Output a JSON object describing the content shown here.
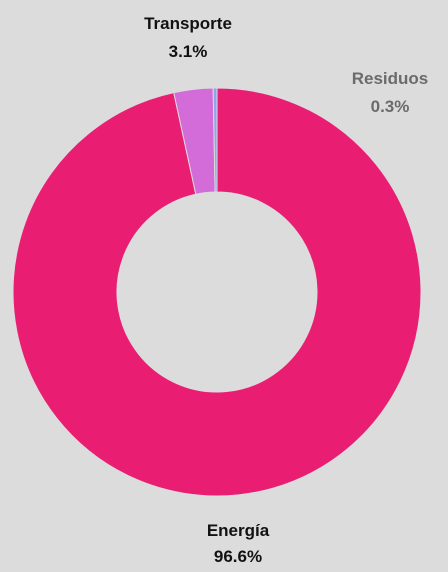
{
  "chart_data": {
    "type": "pie",
    "donut": true,
    "categories": [
      "Energía",
      "Transporte",
      "Residuos"
    ],
    "values": [
      96.6,
      3.1,
      0.3
    ],
    "value_labels": [
      "96.6%",
      "3.1%",
      "0.3%"
    ],
    "colors": [
      "#e91e72",
      "#d36cd8",
      "#8fa4f0"
    ],
    "label_colors": [
      "#111111",
      "#111111",
      "#6b6b6b"
    ],
    "legend": "none",
    "title": ""
  }
}
